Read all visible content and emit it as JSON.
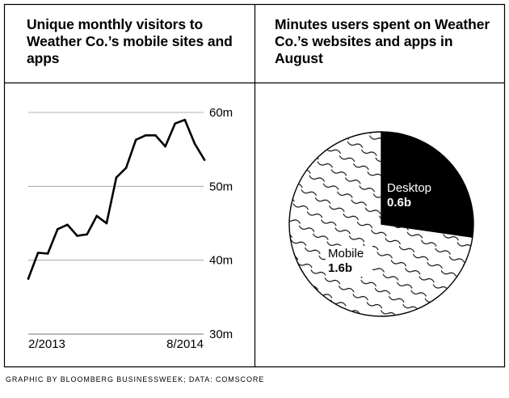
{
  "footer": "GRAPHIC BY BLOOMBERG BUSINESSWEEK; DATA: COMSCORE",
  "chart_data": [
    {
      "type": "line",
      "title": "Unique monthly visitors to Weather Co.’s mobile sites and apps",
      "xlabel": "",
      "ylabel": "",
      "x_tick_labels": [
        "2/2013",
        "8/2014"
      ],
      "y_ticks": [
        30,
        40,
        50,
        60
      ],
      "y_tick_labels": [
        "30m",
        "40m",
        "50m",
        "60m"
      ],
      "ylim": [
        30,
        60
      ],
      "grid": true,
      "series": [
        {
          "name": "Unique monthly visitors (millions)",
          "values": [
            37.5,
            41.0,
            40.9,
            44.2,
            44.8,
            43.3,
            43.5,
            46.0,
            45.0,
            51.2,
            52.5,
            56.3,
            56.9,
            56.9,
            55.4,
            58.5,
            59.0,
            55.8,
            53.6
          ]
        }
      ]
    },
    {
      "type": "pie",
      "title": "Minutes users spent on Weather Co.’s websites and apps in August",
      "slices": [
        {
          "label": "Desktop",
          "value": 0.6,
          "value_label": "0.6b",
          "color": "#000000"
        },
        {
          "label": "Mobile",
          "value": 1.6,
          "value_label": "1.6b",
          "pattern": "wavy"
        }
      ]
    }
  ]
}
